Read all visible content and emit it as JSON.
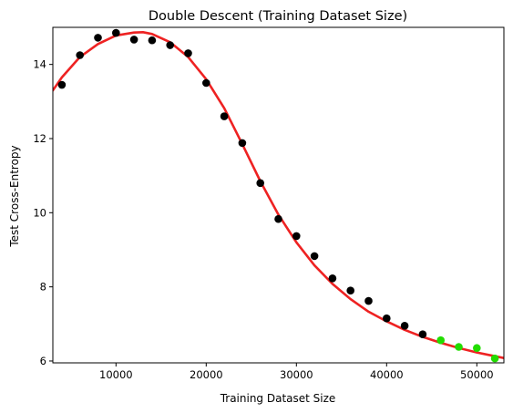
{
  "chart_data": {
    "type": "scatter",
    "title": "Double Descent (Training Dataset Size)",
    "xlabel": "Training Dataset Size",
    "ylabel": "Test Cross-Entropy",
    "xlim": [
      3000,
      53000
    ],
    "ylim": [
      5.95,
      15.0
    ],
    "x_ticks": [
      10000,
      20000,
      30000,
      40000,
      50000
    ],
    "y_ticks": [
      6,
      8,
      10,
      12,
      14
    ],
    "grid": false,
    "legend": "none",
    "series": [
      {
        "color": "#000000",
        "points": [
          [
            4000,
            13.45
          ],
          [
            6000,
            14.25
          ],
          [
            8000,
            14.72
          ],
          [
            10000,
            14.85
          ],
          [
            12000,
            14.67
          ],
          [
            14000,
            14.65
          ],
          [
            16000,
            14.52
          ],
          [
            18000,
            14.3
          ],
          [
            20000,
            13.5
          ],
          [
            22000,
            12.6
          ],
          [
            24000,
            11.88
          ],
          [
            26000,
            10.8
          ],
          [
            28000,
            9.83
          ],
          [
            30000,
            9.37
          ],
          [
            32000,
            8.83
          ],
          [
            34000,
            8.23
          ],
          [
            36000,
            7.9
          ],
          [
            38000,
            7.62
          ],
          [
            40000,
            7.15
          ],
          [
            42000,
            6.95
          ],
          [
            44000,
            6.72
          ]
        ]
      },
      {
        "color": "#22dd00",
        "points": [
          [
            46000,
            6.56
          ],
          [
            48000,
            6.38
          ],
          [
            50000,
            6.35
          ],
          [
            52000,
            6.07
          ]
        ]
      }
    ],
    "fit_curve": {
      "color": "#ee2222",
      "points": [
        [
          3000,
          13.3
        ],
        [
          4000,
          13.65
        ],
        [
          6000,
          14.2
        ],
        [
          8000,
          14.55
        ],
        [
          10000,
          14.78
        ],
        [
          12000,
          14.86
        ],
        [
          13000,
          14.87
        ],
        [
          14000,
          14.82
        ],
        [
          16000,
          14.6
        ],
        [
          18000,
          14.2
        ],
        [
          20000,
          13.6
        ],
        [
          22000,
          12.82
        ],
        [
          24000,
          11.85
        ],
        [
          26000,
          10.85
        ],
        [
          28000,
          9.95
        ],
        [
          30000,
          9.2
        ],
        [
          32000,
          8.58
        ],
        [
          34000,
          8.08
        ],
        [
          36000,
          7.67
        ],
        [
          38000,
          7.33
        ],
        [
          40000,
          7.07
        ],
        [
          42000,
          6.84
        ],
        [
          44000,
          6.65
        ],
        [
          46000,
          6.49
        ],
        [
          48000,
          6.35
        ],
        [
          50000,
          6.23
        ],
        [
          52000,
          6.13
        ],
        [
          53000,
          6.08
        ]
      ]
    }
  }
}
